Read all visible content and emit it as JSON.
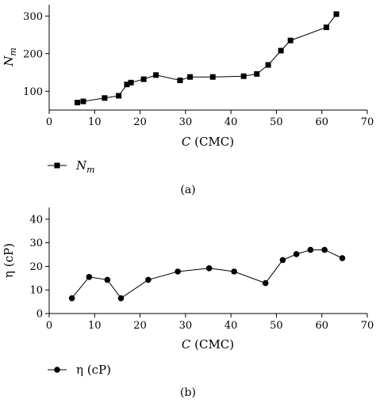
{
  "chart_data": [
    {
      "type": "line",
      "panel_label": "(a)",
      "xlabel_italic": "C",
      "xlabel_rest": " (CMC)",
      "ylabel_main": "N",
      "ylabel_sub": "m",
      "xlim": [
        0,
        70
      ],
      "ylim": [
        50,
        330
      ],
      "xticks": [
        0,
        10,
        20,
        30,
        40,
        50,
        60,
        70
      ],
      "yticks": [
        100,
        200,
        300
      ],
      "grid": false,
      "legend_position": "bottom-left",
      "series": [
        {
          "name_main": "N",
          "name_sub": "m",
          "marker": "square",
          "x": [
            6.2,
            7.5,
            12.2,
            15.3,
            17.1,
            18.0,
            20.8,
            23.5,
            28.8,
            31.0,
            36.0,
            42.8,
            45.7,
            48.2,
            51.0,
            53.1,
            61.0,
            63.2
          ],
          "y": [
            70,
            73,
            82,
            88,
            118,
            123,
            132,
            143,
            129,
            138,
            138,
            140,
            146,
            170,
            208,
            235,
            270,
            305
          ]
        }
      ]
    },
    {
      "type": "line",
      "panel_label": "(b)",
      "xlabel_italic": "C",
      "xlabel_rest": " (CMC)",
      "ylabel": "η (cP)",
      "xlim": [
        0,
        70
      ],
      "ylim": [
        0,
        45
      ],
      "xticks": [
        0,
        10,
        20,
        30,
        40,
        50,
        60,
        70
      ],
      "yticks": [
        0,
        10,
        20,
        30,
        40
      ],
      "grid": false,
      "legend_position": "bottom-left",
      "series": [
        {
          "name": "η (cP)",
          "marker": "circle",
          "x": [
            5.0,
            8.8,
            12.8,
            15.8,
            21.8,
            28.3,
            35.2,
            40.7,
            47.6,
            51.4,
            54.4,
            57.5,
            60.6,
            64.5
          ],
          "y": [
            6.5,
            15.5,
            14.3,
            6.5,
            14.3,
            17.8,
            19.2,
            17.8,
            12.9,
            22.7,
            25.2,
            27.0,
            27.0,
            23.5
          ]
        }
      ]
    }
  ]
}
